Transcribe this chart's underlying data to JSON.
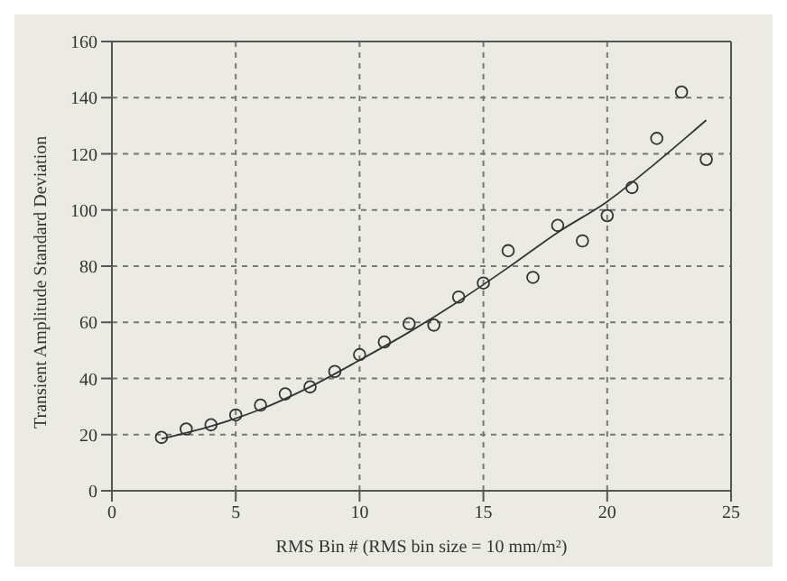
{
  "chart_data": {
    "type": "scatter",
    "xlabel": "RMS Bin # (RMS bin size = 10 mm/m²)",
    "ylabel": "Transient Amplitude Standard Deviation",
    "xlim": [
      0,
      25
    ],
    "xticks": [
      0,
      5,
      10,
      15,
      20,
      25
    ],
    "ylim": [
      0,
      160
    ],
    "yticks": [
      0,
      20,
      40,
      60,
      80,
      100,
      120,
      140,
      160
    ],
    "grid": true,
    "legend": false,
    "series": [
      {
        "color": "#333333",
        "marker": "circle",
        "x": [
          2,
          3,
          4,
          5,
          6,
          7,
          8,
          9,
          10,
          11,
          12,
          13,
          14,
          15,
          16,
          17,
          18,
          19,
          20,
          21,
          22,
          23,
          24
        ],
        "values": [
          19,
          22,
          23.5,
          27,
          30.5,
          34.5,
          37,
          42.5,
          48.5,
          53,
          59.5,
          59,
          69,
          74,
          85.5,
          76,
          94.5,
          89,
          98,
          108,
          125.5,
          142,
          118
        ]
      },
      {
        "type": "line",
        "marker": "none",
        "color": "#333333",
        "x": [
          2,
          4,
          6,
          8,
          10,
          12,
          14,
          16,
          18,
          20,
          22,
          24
        ],
        "values": [
          18.5,
          23,
          29,
          37,
          46.5,
          56.5,
          67.5,
          79.5,
          92,
          103,
          117,
          132
        ]
      }
    ]
  }
}
